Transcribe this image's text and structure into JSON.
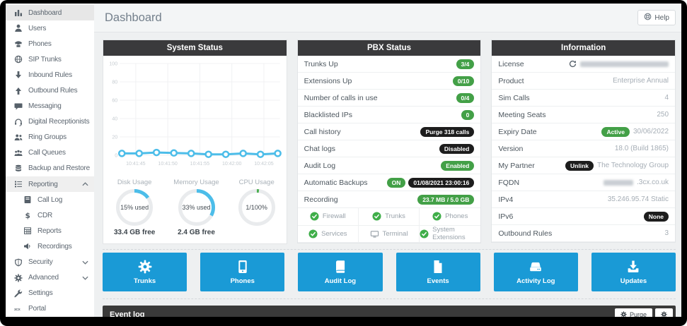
{
  "page": {
    "title": "Dashboard"
  },
  "help": {
    "label": "Help"
  },
  "colors": {
    "accent_blue": "#1a9ad6",
    "chart_blue": "#4cbde9",
    "green": "#43a047",
    "dark_badge": "#1d1d1d",
    "cpu_green": "#4caf50"
  },
  "sidebar": {
    "items": [
      {
        "label": "Dashboard",
        "icon": "bar-chart-icon",
        "active": true
      },
      {
        "label": "Users",
        "icon": "user-icon"
      },
      {
        "label": "Phones",
        "icon": "desk-phone-icon"
      },
      {
        "label": "SIP Trunks",
        "icon": "globe-icon"
      },
      {
        "label": "Inbound Rules",
        "icon": "arrow-down-icon"
      },
      {
        "label": "Outbound Rules",
        "icon": "arrow-up-icon"
      },
      {
        "label": "Messaging",
        "icon": "chat-icon"
      },
      {
        "label": "Digital Receptionists",
        "icon": "headset-icon"
      },
      {
        "label": "Ring Groups",
        "icon": "users-icon"
      },
      {
        "label": "Call Queues",
        "icon": "queue-icon"
      },
      {
        "label": "Backup and Restore",
        "icon": "database-icon"
      },
      {
        "label": "Reporting",
        "icon": "list-icon",
        "chevron": "up",
        "open": true
      },
      {
        "label": "Call Log",
        "icon": "call-log-icon",
        "sub": true
      },
      {
        "label": "CDR",
        "icon": "dollar-icon",
        "sub": true
      },
      {
        "label": "Reports",
        "icon": "table-icon",
        "sub": true
      },
      {
        "label": "Recordings",
        "icon": "speaker-icon",
        "sub": true
      },
      {
        "label": "Security",
        "icon": "shield-icon",
        "chevron": "down"
      },
      {
        "label": "Advanced",
        "icon": "gear-icon",
        "chevron": "down"
      },
      {
        "label": "Settings",
        "icon": "wrench-icon"
      },
      {
        "label": "Portal",
        "icon": "threecx-icon"
      }
    ]
  },
  "panels": {
    "system_status": {
      "title": "System Status",
      "gauges": [
        {
          "label": "Disk Usage",
          "center": "15% used",
          "sub": "33.4 GB free",
          "percent": 15,
          "color": "#4cbde9"
        },
        {
          "label": "Memory Usage",
          "center": "33% used",
          "sub": "2.4 GB free",
          "percent": 33,
          "color": "#4cbde9"
        },
        {
          "label": "CPU Usage",
          "center": "1/100%",
          "sub": "",
          "percent": 2,
          "color": "#4caf50"
        }
      ]
    },
    "pbx_status": {
      "title": "PBX Status",
      "rows": [
        {
          "label": "Trunks Up",
          "badges": [
            {
              "text": "3/4",
              "style": "green"
            }
          ]
        },
        {
          "label": "Extensions Up",
          "badges": [
            {
              "text": "0/10",
              "style": "green"
            }
          ]
        },
        {
          "label": "Number of calls in use",
          "badges": [
            {
              "text": "0/4",
              "style": "green"
            }
          ]
        },
        {
          "label": "Blacklisted IPs",
          "badges": [
            {
              "text": "0",
              "style": "green"
            }
          ]
        },
        {
          "label": "Call history",
          "badges": [
            {
              "text": "Purge 318 calls",
              "style": "dark",
              "interactable": true
            }
          ]
        },
        {
          "label": "Chat logs",
          "badges": [
            {
              "text": "Disabled",
              "style": "dark"
            }
          ]
        },
        {
          "label": "Audit Log",
          "badges": [
            {
              "text": "Enabled",
              "style": "green"
            }
          ]
        },
        {
          "label": "Automatic Backups",
          "badges": [
            {
              "text": "ON",
              "style": "green"
            },
            {
              "text": "01/08/2021 23:00:16",
              "style": "dark"
            }
          ]
        },
        {
          "label": "Recording",
          "badges": [
            {
              "text": "23.7 MB / 5.0 GB",
              "style": "green"
            }
          ]
        }
      ],
      "services": [
        {
          "label": "Firewall",
          "status": "ok"
        },
        {
          "label": "Trunks",
          "status": "ok"
        },
        {
          "label": "Phones",
          "status": "ok"
        },
        {
          "label": "Services",
          "status": "ok"
        },
        {
          "label": "Terminal",
          "status": "terminal"
        },
        {
          "label": "System Extensions",
          "status": "ok"
        }
      ]
    },
    "information": {
      "title": "Information",
      "rows": [
        {
          "label": "License",
          "value": "",
          "redacted": true,
          "refresh": true
        },
        {
          "label": "Product",
          "value": "Enterprise Annual"
        },
        {
          "label": "Sim Calls",
          "value": "4"
        },
        {
          "label": "Meeting Seats",
          "value": "250"
        },
        {
          "label": "Expiry Date",
          "value": "30/06/2022",
          "badge": {
            "text": "Active",
            "style": "green"
          }
        },
        {
          "label": "Version",
          "value": "18.0 (Build 1865)"
        },
        {
          "label": "My Partner",
          "value": "The Technology Group",
          "badge": {
            "text": "Unlink",
            "style": "dark",
            "interactable": true
          }
        },
        {
          "label": "FQDN",
          "value": ".3cx.co.uk",
          "redacted_prefix": true
        },
        {
          "label": "IPv4",
          "value": "35.246.95.74 Static"
        },
        {
          "label": "IPv6",
          "value": "",
          "badge": {
            "text": "None",
            "style": "dark"
          }
        },
        {
          "label": "Outbound Rules",
          "value": "3"
        }
      ]
    }
  },
  "quick_buttons": [
    {
      "label": "Trunks",
      "icon": "gear-icon"
    },
    {
      "label": "Phones",
      "icon": "mobile-icon"
    },
    {
      "label": "Audit Log",
      "icon": "book-icon"
    },
    {
      "label": "Events",
      "icon": "file-icon"
    },
    {
      "label": "Activity Log",
      "icon": "drive-icon"
    },
    {
      "label": "Updates",
      "icon": "download-icon"
    }
  ],
  "event_log": {
    "title": "Event log",
    "purge_label": "Purge"
  },
  "chart_data": {
    "type": "line",
    "title": "System Status",
    "x_ticks": [
      "10:41:45",
      "10:41:50",
      "10:41:55",
      "10:42:00",
      "10:42:05"
    ],
    "values": [
      2,
      2,
      3,
      2.5,
      2,
      1,
      1,
      2,
      1,
      2
    ],
    "y_ticks": [
      0,
      20,
      40,
      60,
      80,
      100
    ],
    "ylim": [
      0,
      100
    ],
    "series_color": "#4cbde9",
    "grid": true,
    "legend": "none"
  }
}
